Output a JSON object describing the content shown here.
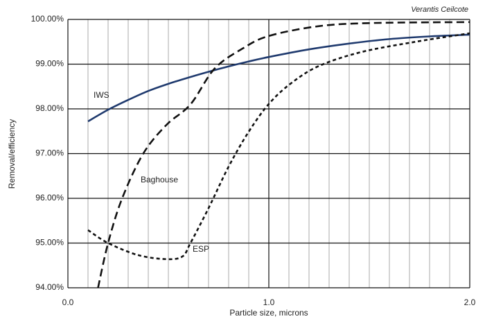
{
  "chart_data": {
    "type": "line",
    "source": "Verantis Ceilcote",
    "xlabel": "Particle size, microns",
    "ylabel": "Removal/efficiency",
    "xlim": [
      0,
      2
    ],
    "ylim": [
      94,
      100
    ],
    "xticks": [
      {
        "value": 0,
        "label": "0.0"
      },
      {
        "value": 1,
        "label": "1.0"
      },
      {
        "value": 2,
        "label": "2.0"
      }
    ],
    "x_gridlines": [
      0.1,
      0.2,
      0.3,
      0.4,
      0.5,
      0.6,
      0.7,
      0.8,
      0.9,
      1.1,
      1.2,
      1.3,
      1.4,
      1.5,
      1.6,
      1.7,
      1.8,
      1.9
    ],
    "yticks": [
      {
        "value": 94,
        "label": "94.00%"
      },
      {
        "value": 95,
        "label": "95.00%"
      },
      {
        "value": 96,
        "label": "96.00%"
      },
      {
        "value": 97,
        "label": "97.00%"
      },
      {
        "value": 98,
        "label": "98.00%"
      },
      {
        "value": 99,
        "label": "99.00%"
      },
      {
        "value": 100,
        "label": "100.00%"
      }
    ],
    "grid": true,
    "series": [
      {
        "name": "IWS",
        "color": "#1f3a6e",
        "linestyle": "solid",
        "x": [
          0.1,
          0.2,
          0.3,
          0.4,
          0.5,
          0.6,
          0.7,
          0.8,
          0.9,
          1.0,
          1.2,
          1.4,
          1.6,
          1.8,
          2.0
        ],
        "values": [
          97.72,
          97.98,
          98.2,
          98.4,
          98.56,
          98.7,
          98.83,
          98.95,
          99.06,
          99.16,
          99.33,
          99.46,
          99.56,
          99.62,
          99.66
        ]
      },
      {
        "name": "Baghouse",
        "color": "#111111",
        "linestyle": "dashed",
        "x": [
          0.15,
          0.2,
          0.27,
          0.375,
          0.49,
          0.61,
          0.73,
          0.87,
          1.0,
          1.25,
          1.52,
          2.0
        ],
        "values": [
          94.0,
          95.0,
          96.0,
          97.0,
          97.64,
          98.1,
          98.9,
          99.35,
          99.63,
          99.85,
          99.92,
          99.94
        ]
      },
      {
        "name": "ESP",
        "color": "#111111",
        "linestyle": "dotted",
        "x": [
          0.1,
          0.2,
          0.35,
          0.49,
          0.57,
          0.61,
          0.7,
          0.8,
          0.9,
          1.0,
          1.11,
          1.25,
          1.46,
          1.73,
          2.0
        ],
        "values": [
          95.29,
          95.0,
          94.73,
          94.64,
          94.7,
          95.0,
          95.78,
          96.71,
          97.49,
          98.11,
          98.57,
          98.96,
          99.27,
          99.5,
          99.69
        ]
      }
    ]
  }
}
